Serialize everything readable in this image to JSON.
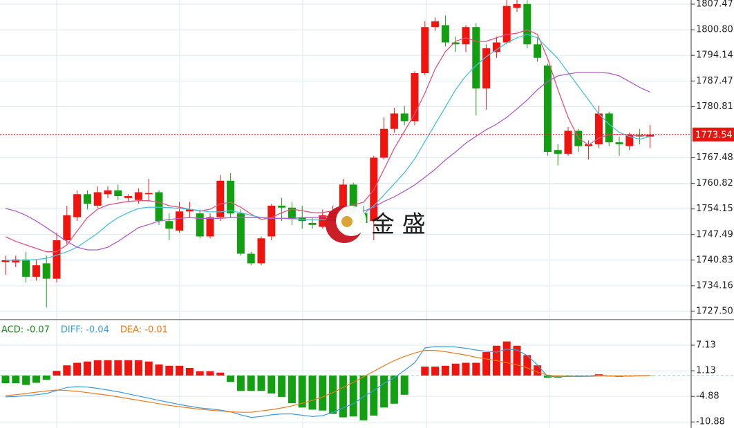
{
  "chart_data": [
    {
      "type": "candlestick",
      "up_color": "#f0140f",
      "down_color": "#12a012",
      "current_price": 1773.54,
      "current_color": "#e8140f",
      "ylim": [
        1725.34,
        1808.55
      ],
      "yticks": [
        1807.47,
        {
          "value": 1800.8,
          "label": "1800.80"
        },
        1794.14,
        1787.47,
        1780.81,
        1767.48,
        1760.82,
        1754.15,
        1747.49,
        1740.83,
        1734.16,
        {
          "value": 1727.5,
          "label": "1727.50"
        }
      ],
      "open": [
        1740.3,
        1740.2,
        1741,
        1736.5,
        1740,
        1736,
        1746,
        1752,
        1758,
        1755,
        1758,
        1759,
        1757,
        1756.5,
        1758,
        1758.5,
        1751,
        1748.5,
        1753.5,
        1753,
        1747,
        1752,
        1761.5,
        1753,
        1742.5,
        1740,
        1747,
        1755,
        1754.5,
        1752,
        1750.5,
        1749.5,
        1751,
        1753,
        1760.5,
        1753,
        1751,
        1767.5,
        1775,
        1779,
        1777,
        1789.5,
        1801.5,
        1802,
        1797.5,
        1797,
        1801.5,
        1785.5,
        1795,
        1797.5,
        1806.5,
        1807.5,
        1797,
        1791.5,
        1769.5,
        1768.5,
        1774.5,
        1770.5,
        1771,
        1779,
        1771.5,
        1770.5,
        1773.5,
        1773
      ],
      "high": [
        1742,
        1742,
        1743,
        1741,
        1742,
        1748,
        1755,
        1759,
        1759,
        1760,
        1760,
        1760.5,
        1758,
        1759.5,
        1762,
        1759,
        1753,
        1756,
        1756,
        1754,
        1753,
        1763,
        1763.5,
        1754,
        1743,
        1747,
        1755.5,
        1757,
        1756,
        1755,
        1752,
        1754,
        1755,
        1762,
        1761,
        1755,
        1768,
        1778,
        1780.5,
        1781,
        1790,
        1803,
        1804,
        1804.5,
        1799,
        1802,
        1802.5,
        1797,
        1799,
        1809,
        1809,
        1808.5,
        1799,
        1792,
        1771,
        1775.5,
        1775,
        1772,
        1781,
        1779.5,
        1773,
        1774,
        1775,
        1776
      ],
      "low": [
        1737,
        1739,
        1735,
        1735.5,
        1728.5,
        1735,
        1745,
        1751,
        1754,
        1754.5,
        1757,
        1756.5,
        1756,
        1755.5,
        1756,
        1750,
        1746,
        1748,
        1752,
        1746.5,
        1746.5,
        1751,
        1752,
        1742,
        1739.5,
        1739.5,
        1746,
        1751,
        1750,
        1749,
        1749,
        1749,
        1749.5,
        1752,
        1752,
        1749,
        1746,
        1767,
        1774,
        1776,
        1776,
        1789,
        1800.5,
        1796.5,
        1795,
        1795,
        1778.5,
        1780,
        1793.5,
        1797,
        1805.5,
        1796,
        1792.5,
        1768,
        1765.5,
        1768,
        1769,
        1767,
        1770,
        1770.5,
        1768,
        1769.5,
        1771,
        1770
      ],
      "close": [
        1740.8,
        1741,
        1736.5,
        1739.5,
        1736,
        1746,
        1752.5,
        1758,
        1755.5,
        1758.5,
        1759,
        1757.5,
        1757.5,
        1758.5,
        1758.3,
        1751,
        1749,
        1753.5,
        1754,
        1747,
        1752,
        1761.5,
        1753,
        1742.5,
        1740,
        1746.5,
        1755,
        1754.5,
        1751.5,
        1751,
        1750,
        1752.5,
        1753.5,
        1760.5,
        1753,
        1750.5,
        1767.5,
        1775,
        1779,
        1777,
        1789.5,
        1801.5,
        1803,
        1797.5,
        1797,
        1801.5,
        1785.5,
        1796,
        1797.5,
        1807,
        1807.5,
        1797,
        1793.5,
        1769,
        1768.5,
        1774.5,
        1770.5,
        1771,
        1779,
        1771.5,
        1771,
        1773.5,
        1773,
        1773.5
      ],
      "series": [
        {
          "color": "#e8507a",
          "values": [
            1746.9,
            1745.7,
            1744.8,
            1743.9,
            1743,
            1743,
            1744.8,
            1748.4,
            1751.9,
            1754.1,
            1755.2,
            1755.7,
            1756.1,
            1756.3,
            1756.3,
            1755.9,
            1755,
            1754.6,
            1754.1,
            1753.6,
            1754.1,
            1755.5,
            1755.9,
            1754.6,
            1752.8,
            1751.4,
            1751.9,
            1753.2,
            1754.1,
            1753.7,
            1753.2,
            1753.2,
            1753.7,
            1754.6,
            1755.2,
            1755.9,
            1759.1,
            1764.5,
            1769.9,
            1774.4,
            1778.9,
            1784.3,
            1790.6,
            1795.1,
            1797.8,
            1798.7,
            1797.8,
            1797.8,
            1798.7,
            1799.6,
            1799.9,
            1800.8,
            1799.6,
            1793.3,
            1785.2,
            1778,
            1772.6,
            1770.8,
            1772.6,
            1773.5,
            1773.5,
            1773.5,
            1773.1,
            1773.5
          ]
        },
        {
          "color": "#45c3dc",
          "values": [
            1740.8,
            1740.8,
            1740.8,
            1741,
            1741.3,
            1742.1,
            1743,
            1744.2,
            1746,
            1747.8,
            1750.1,
            1751.9,
            1753.2,
            1754.3,
            1754.6,
            1754.6,
            1754.5,
            1754.3,
            1754.1,
            1753.7,
            1753.4,
            1753.4,
            1753.7,
            1753.2,
            1752.5,
            1751.9,
            1751.7,
            1751.7,
            1751.6,
            1751.4,
            1751.4,
            1751.4,
            1751.7,
            1752.1,
            1752.5,
            1752.8,
            1755,
            1757.8,
            1760.7,
            1763.6,
            1767.2,
            1771.7,
            1776.2,
            1780.7,
            1785.2,
            1788.8,
            1791.5,
            1793.8,
            1795.6,
            1797.4,
            1798.7,
            1799.6,
            1798.7,
            1796,
            1793.3,
            1789.7,
            1786.1,
            1782.5,
            1778.9,
            1776.2,
            1774.1,
            1773,
            1772.3,
            1773
          ]
        },
        {
          "color": "#b05cc8",
          "values": [
            1754.3,
            1753.6,
            1752.5,
            1751,
            1749.3,
            1747.5,
            1745.7,
            1744.2,
            1743.5,
            1743.5,
            1744.2,
            1745.7,
            1747.5,
            1749.3,
            1750.1,
            1751,
            1751.4,
            1751.7,
            1751.9,
            1751.7,
            1751.7,
            1751.7,
            1751.9,
            1751.9,
            1751.9,
            1751.9,
            1751.7,
            1751.7,
            1751.7,
            1751.9,
            1751.9,
            1752.1,
            1752.3,
            1752.7,
            1753,
            1753.6,
            1754.6,
            1756.1,
            1757.3,
            1758.8,
            1760.4,
            1762.4,
            1764.5,
            1766.9,
            1769,
            1771.3,
            1773.1,
            1774.8,
            1776.2,
            1778,
            1780.2,
            1782.5,
            1785.2,
            1787.3,
            1788.8,
            1789.3,
            1789.7,
            1789.7,
            1789.7,
            1789.5,
            1788.8,
            1787.3,
            1785.8,
            1784.6
          ]
        }
      ]
    },
    {
      "type": "macd",
      "up_color": "#f0140f",
      "down_color": "#12a012",
      "ylim": [
        -12.3,
        12.8
      ],
      "yticks": [
        7.13,
        1.13,
        -4.88,
        -10.88
      ],
      "series": [
        {
          "name": "ACD: -0.07",
          "color": "#12a012",
          "values": [
            -1.8,
            -1.8,
            -2.2,
            -1.7,
            -1,
            1.1,
            2.4,
            3,
            3.3,
            3.6,
            3.6,
            3.6,
            3.6,
            3.6,
            3.3,
            2.6,
            2.3,
            2.3,
            1.8,
            1,
            1,
            0.7,
            -1.5,
            -3.6,
            -3.6,
            -3.6,
            -4.2,
            -5,
            -6.5,
            -7.5,
            -8,
            -8.2,
            -9,
            -9.8,
            -9.6,
            -10.5,
            -9.4,
            -7.5,
            -6.6,
            -4.5,
            0,
            2.1,
            2.1,
            2.3,
            2.8,
            3,
            3,
            5.5,
            7,
            8,
            7,
            4.8,
            2.4,
            -0.5,
            -0.5,
            -0.3,
            -0.3,
            -0.2,
            0.3,
            -0.2,
            -0.3,
            -0.2,
            -0.1,
            -0.07
          ]
        },
        {
          "name": "DIFF: -0.04",
          "color": "#3b9be0",
          "values": [
            -5,
            -4.9,
            -4.7,
            -4.5,
            -4.2,
            -3.5,
            -2.8,
            -2.6,
            -2.7,
            -3,
            -3.4,
            -3.8,
            -4.3,
            -4.8,
            -5.3,
            -5.8,
            -6.3,
            -6.8,
            -7.2,
            -7.6,
            -7.8,
            -8.1,
            -8.5,
            -9.2,
            -9.8,
            -9.6,
            -9.2,
            -9,
            -9,
            -9.3,
            -9.6,
            -9.4,
            -8.6,
            -7.6,
            -6.6,
            -5,
            -3.5,
            -1.8,
            -0.5,
            1.2,
            3,
            6.5,
            6.8,
            6.8,
            6.7,
            6.4,
            6,
            5.7,
            5.5,
            6.2,
            6,
            4.7,
            2.5,
            -0.2,
            -0.3,
            -0.2,
            -0.1,
            -0.1,
            0.1,
            -0.1,
            -0.2,
            -0.1,
            -0.05,
            -0.04
          ]
        },
        {
          "name": "DEA: -0.01",
          "color": "#f07a1a",
          "values": [
            -4.7,
            -4.5,
            -4.2,
            -3.9,
            -3.6,
            -3.4,
            -3.5,
            -3.7,
            -4,
            -4.3,
            -4.6,
            -5,
            -5.4,
            -5.8,
            -6.2,
            -6.6,
            -7,
            -7.3,
            -7.6,
            -7.9,
            -8.1,
            -8.3,
            -8.5,
            -8.6,
            -8.6,
            -8.3,
            -8,
            -7.6,
            -7.1,
            -6.5,
            -5.8,
            -5,
            -4,
            -2.8,
            -1.6,
            -0.3,
            1,
            2.3,
            3.5,
            4.5,
            5.3,
            5.9,
            5.9,
            5.6,
            5.2,
            4.8,
            4.3,
            3.9,
            3.5,
            3,
            2.5,
            1.8,
            0.8,
            0.1,
            -0.1,
            -0.2,
            -0.2,
            -0.2,
            -0.1,
            -0.1,
            -0.1,
            -0.1,
            -0.05,
            -0.01
          ]
        }
      ]
    }
  ],
  "watermark": "金 盛"
}
